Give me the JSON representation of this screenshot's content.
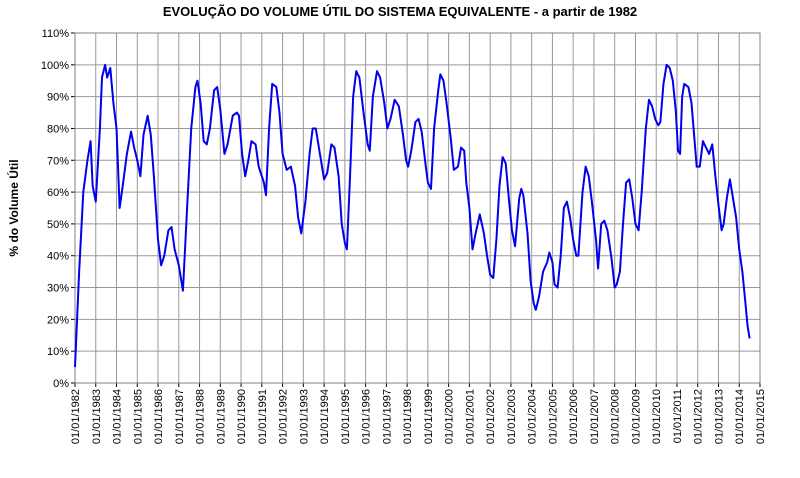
{
  "chart_data": {
    "type": "line",
    "title": "EVOLUÇÃO DO VOLUME ÚTIL DO SISTEMA EQUIVALENTE - a partir de 1982",
    "y_label": "% do Volume Útil",
    "xlim": [
      1982,
      2015
    ],
    "xticks": [
      {
        "value": 1982,
        "label": "01/01/1982"
      },
      {
        "value": 1983,
        "label": "01/01/1983"
      },
      {
        "value": 1984,
        "label": "01/01/1984"
      },
      {
        "value": 1985,
        "label": "01/01/1985"
      },
      {
        "value": 1986,
        "label": "01/01/1986"
      },
      {
        "value": 1987,
        "label": "01/01/1987"
      },
      {
        "value": 1988,
        "label": "01/01/1988"
      },
      {
        "value": 1989,
        "label": "01/01/1989"
      },
      {
        "value": 1990,
        "label": "01/01/1990"
      },
      {
        "value": 1991,
        "label": "01/01/1991"
      },
      {
        "value": 1992,
        "label": "01/01/1992"
      },
      {
        "value": 1993,
        "label": "01/01/1993"
      },
      {
        "value": 1994,
        "label": "01/01/1994"
      },
      {
        "value": 1995,
        "label": "01/01/1995"
      },
      {
        "value": 1996,
        "label": "01/01/1996"
      },
      {
        "value": 1997,
        "label": "01/01/1997"
      },
      {
        "value": 1998,
        "label": "01/01/1998"
      },
      {
        "value": 1999,
        "label": "01/01/1999"
      },
      {
        "value": 2000,
        "label": "01/01/2000"
      },
      {
        "value": 2001,
        "label": "01/01/2001"
      },
      {
        "value": 2002,
        "label": "01/01/2002"
      },
      {
        "value": 2003,
        "label": "01/01/2003"
      },
      {
        "value": 2004,
        "label": "01/01/2004"
      },
      {
        "value": 2005,
        "label": "01/01/2005"
      },
      {
        "value": 2006,
        "label": "01/01/2006"
      },
      {
        "value": 2007,
        "label": "01/01/2007"
      },
      {
        "value": 2008,
        "label": "01/01/2008"
      },
      {
        "value": 2009,
        "label": "01/01/2009"
      },
      {
        "value": 2010,
        "label": "01/01/2010"
      },
      {
        "value": 2011,
        "label": "01/01/2011"
      },
      {
        "value": 2012,
        "label": "01/01/2012"
      },
      {
        "value": 2013,
        "label": "01/01/2013"
      },
      {
        "value": 2014,
        "label": "01/01/2014"
      },
      {
        "value": 2015,
        "label": "01/01/2015"
      }
    ],
    "ylim": [
      0,
      110
    ],
    "yticks": [
      {
        "value": 0,
        "label": "0%"
      },
      {
        "value": 10,
        "label": "10%"
      },
      {
        "value": 20,
        "label": "20%"
      },
      {
        "value": 30,
        "label": "30%"
      },
      {
        "value": 40,
        "label": "40%"
      },
      {
        "value": 50,
        "label": "50%"
      },
      {
        "value": 60,
        "label": "60%"
      },
      {
        "value": 70,
        "label": "70%"
      },
      {
        "value": 80,
        "label": "80%"
      },
      {
        "value": 90,
        "label": "90%"
      },
      {
        "value": 100,
        "label": "100%"
      },
      {
        "value": 110,
        "label": "110%"
      }
    ],
    "grid": true,
    "series": [
      {
        "color": "#0000ee",
        "x": [
          1982.0,
          1982.2,
          1982.4,
          1982.6,
          1982.75,
          1982.85,
          1983.0,
          1983.2,
          1983.3,
          1983.45,
          1983.55,
          1983.7,
          1983.85,
          1984.0,
          1984.15,
          1984.3,
          1984.5,
          1984.7,
          1984.85,
          1985.0,
          1985.15,
          1985.3,
          1985.5,
          1985.65,
          1985.8,
          1986.0,
          1986.15,
          1986.3,
          1986.5,
          1986.65,
          1986.8,
          1987.0,
          1987.15,
          1987.2,
          1987.4,
          1987.6,
          1987.8,
          1987.9,
          1988.05,
          1988.2,
          1988.35,
          1988.5,
          1988.7,
          1988.85,
          1989.0,
          1989.2,
          1989.35,
          1989.6,
          1989.8,
          1989.9,
          1990.05,
          1990.2,
          1990.35,
          1990.5,
          1990.7,
          1990.85,
          1991.1,
          1991.2,
          1991.35,
          1991.5,
          1991.7,
          1991.85,
          1992.0,
          1992.2,
          1992.4,
          1992.6,
          1992.75,
          1992.9,
          1993.1,
          1993.3,
          1993.45,
          1993.6,
          1993.8,
          1994.0,
          1994.15,
          1994.35,
          1994.5,
          1994.7,
          1994.85,
          1995.0,
          1995.1,
          1995.25,
          1995.4,
          1995.55,
          1995.7,
          1995.9,
          1996.1,
          1996.2,
          1996.35,
          1996.55,
          1996.7,
          1996.9,
          1997.05,
          1997.2,
          1997.4,
          1997.6,
          1997.8,
          1997.95,
          1998.05,
          1998.2,
          1998.4,
          1998.55,
          1998.7,
          1998.9,
          1999.0,
          1999.15,
          1999.3,
          1999.5,
          1999.6,
          1999.75,
          1999.9,
          2000.1,
          2000.25,
          2000.45,
          2000.6,
          2000.75,
          2000.85,
          2001.0,
          2001.15,
          2001.3,
          2001.5,
          2001.7,
          2001.85,
          2002.0,
          2002.15,
          2002.3,
          2002.45,
          2002.6,
          2002.75,
          2002.9,
          2003.05,
          2003.2,
          2003.4,
          2003.5,
          2003.6,
          2003.8,
          2003.95,
          2004.1,
          2004.2,
          2004.35,
          2004.55,
          2004.75,
          2004.85,
          2005.0,
          2005.1,
          2005.25,
          2005.4,
          2005.55,
          2005.7,
          2005.85,
          2006.0,
          2006.15,
          2006.25,
          2006.45,
          2006.6,
          2006.75,
          2006.9,
          2007.1,
          2007.2,
          2007.35,
          2007.5,
          2007.65,
          2007.85,
          2008.0,
          2008.1,
          2008.25,
          2008.4,
          2008.55,
          2008.7,
          2008.85,
          2009.0,
          2009.15,
          2009.3,
          2009.5,
          2009.65,
          2009.8,
          2009.95,
          2010.1,
          2010.2,
          2010.35,
          2010.5,
          2010.65,
          2010.8,
          2010.95,
          2011.05,
          2011.15,
          2011.25,
          2011.35,
          2011.55,
          2011.7,
          2011.85,
          2011.95,
          2012.1,
          2012.25,
          2012.4,
          2012.55,
          2012.7,
          2012.85,
          2013.0,
          2013.15,
          2013.25,
          2013.4,
          2013.55,
          2013.7,
          2013.85,
          2014.0,
          2014.15,
          2014.3,
          2014.4,
          2014.5
        ],
        "values": [
          5,
          35,
          60,
          70,
          76,
          62,
          57,
          80,
          96,
          100,
          96,
          99,
          88,
          80,
          55,
          62,
          72,
          79,
          74,
          70,
          65,
          78,
          84,
          78,
          65,
          45,
          37,
          40,
          48,
          49,
          42,
          37,
          31,
          29,
          55,
          80,
          93,
          95,
          88,
          76,
          75,
          80,
          92,
          93,
          86,
          72,
          75,
          84,
          85,
          84,
          72,
          65,
          70,
          76,
          75,
          68,
          63,
          59,
          80,
          94,
          93,
          85,
          72,
          67,
          68,
          62,
          52,
          47,
          57,
          72,
          80,
          80,
          72,
          64,
          66,
          75,
          74,
          65,
          50,
          44,
          42,
          65,
          90,
          98,
          96,
          85,
          75,
          73,
          90,
          98,
          96,
          88,
          80,
          83,
          89,
          87,
          78,
          70,
          68,
          73,
          82,
          83,
          79,
          68,
          63,
          61,
          80,
          92,
          97,
          95,
          88,
          77,
          67,
          68,
          74,
          73,
          63,
          55,
          42,
          47,
          53,
          47,
          40,
          34,
          33,
          45,
          62,
          71,
          69,
          58,
          48,
          43,
          58,
          61,
          59,
          47,
          32,
          25,
          23,
          27,
          35,
          38,
          41,
          38,
          31,
          30,
          40,
          55,
          57,
          52,
          45,
          40,
          40,
          60,
          68,
          65,
          57,
          45,
          36,
          50,
          51,
          48,
          39,
          30,
          31,
          35,
          50,
          63,
          64,
          58,
          50,
          48,
          60,
          80,
          89,
          87,
          83,
          81,
          82,
          94,
          100,
          99,
          95,
          85,
          73,
          72,
          90,
          94,
          93,
          88,
          76,
          68,
          68,
          76,
          74,
          72,
          75,
          65,
          56,
          48,
          50,
          58,
          64,
          58,
          52,
          42,
          35,
          25,
          18,
          14
        ]
      }
    ]
  }
}
